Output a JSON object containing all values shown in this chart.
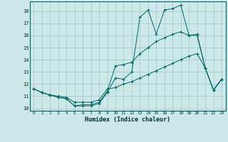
{
  "xlabel": "Humidex (Indice chaleur)",
  "bg_color": "#cce8e8",
  "grid_color": "#aacccc",
  "line_color": "#006666",
  "xlim": [
    -0.5,
    23.5
  ],
  "ylim": [
    9.8,
    18.8
  ],
  "xticks": [
    0,
    1,
    2,
    3,
    4,
    5,
    6,
    7,
    8,
    9,
    10,
    11,
    12,
    13,
    14,
    15,
    16,
    17,
    18,
    19,
    20,
    21,
    22,
    23
  ],
  "yticks": [
    10,
    11,
    12,
    13,
    14,
    15,
    16,
    17,
    18
  ],
  "series1_x": [
    0,
    1,
    2,
    3,
    4,
    5,
    6,
    7,
    8,
    9,
    10,
    11,
    12,
    13,
    14,
    15,
    16,
    17,
    18,
    19,
    20,
    21,
    22,
    23
  ],
  "series1_y": [
    11.6,
    11.3,
    11.1,
    10.9,
    10.8,
    10.2,
    10.2,
    10.2,
    10.4,
    11.3,
    12.5,
    12.4,
    13.0,
    17.5,
    18.1,
    16.1,
    18.1,
    18.2,
    18.5,
    16.0,
    16.1,
    13.3,
    11.5,
    12.4
  ],
  "series2_x": [
    0,
    1,
    2,
    3,
    4,
    5,
    6,
    7,
    8,
    9,
    10,
    11,
    12,
    13,
    14,
    15,
    16,
    17,
    18,
    19,
    20,
    21,
    22,
    23
  ],
  "series2_y": [
    11.6,
    11.3,
    11.1,
    10.9,
    10.8,
    10.2,
    10.3,
    10.3,
    10.5,
    11.4,
    13.5,
    13.6,
    13.8,
    14.5,
    15.0,
    15.5,
    15.8,
    16.1,
    16.3,
    16.0,
    16.0,
    13.3,
    11.5,
    12.4
  ],
  "series3_x": [
    0,
    1,
    2,
    3,
    4,
    5,
    6,
    7,
    8,
    9,
    10,
    11,
    12,
    13,
    14,
    15,
    16,
    17,
    18,
    19,
    20,
    21,
    22,
    23
  ],
  "series3_y": [
    11.6,
    11.3,
    11.1,
    11.0,
    10.9,
    10.5,
    10.5,
    10.5,
    10.7,
    11.6,
    11.7,
    12.0,
    12.2,
    12.5,
    12.8,
    13.1,
    13.4,
    13.7,
    14.0,
    14.3,
    14.5,
    13.3,
    11.5,
    12.4
  ]
}
